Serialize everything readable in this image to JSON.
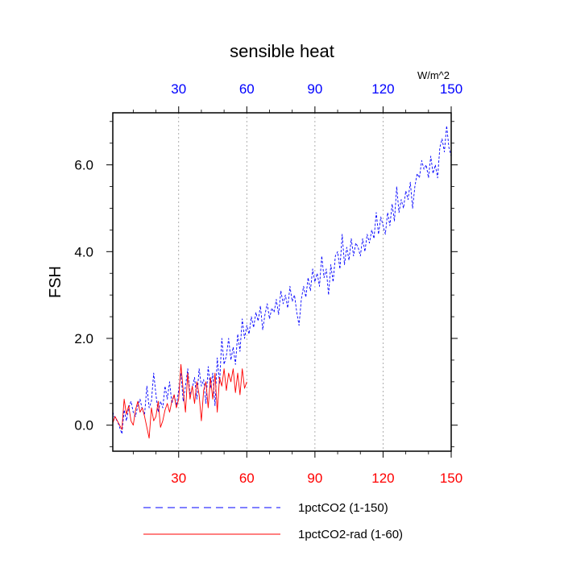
{
  "chart_data": {
    "type": "line",
    "title": "sensible heat",
    "units_label": "W/m^2",
    "ylabel": "FSH",
    "xlim": [
      1,
      150
    ],
    "ylim": [
      -0.6,
      7.2
    ],
    "x_ticks": [
      "30",
      "60",
      "90",
      "120",
      "150"
    ],
    "x_tick_values": [
      30,
      60,
      90,
      120,
      150
    ],
    "y_ticks": [
      "0.0",
      "2.0",
      "4.0",
      "6.0"
    ],
    "y_tick_values": [
      0,
      2,
      4,
      6
    ],
    "grid_vertical": true,
    "colors": {
      "top_axis": "#0000ff",
      "bottom_axis": "#ff0000",
      "series_1": "#0000ff",
      "series_2": "#ff0000"
    },
    "legend": {
      "placement": "bottom"
    },
    "series": [
      {
        "name": "1pctCO2 (1-150)",
        "color": "#0000ff",
        "style": "dashed",
        "x_start": 1,
        "values": [
          0.3,
          0.15,
          0.1,
          -0.05,
          -0.2,
          0.35,
          0.1,
          0.4,
          0.55,
          0.3,
          0.2,
          0.45,
          0.6,
          0.35,
          0.25,
          0.9,
          0.4,
          0.55,
          1.2,
          0.7,
          0.3,
          0.55,
          0.4,
          0.9,
          0.6,
          1.0,
          0.5,
          0.7,
          0.45,
          0.8,
          1.2,
          0.55,
          0.9,
          1.3,
          0.7,
          0.85,
          1.1,
          0.6,
          1.3,
          0.9,
          1.05,
          0.5,
          1.35,
          0.85,
          1.2,
          0.45,
          1.55,
          0.95,
          2.0,
          1.4,
          1.6,
          2.0,
          1.5,
          1.8,
          1.4,
          2.1,
          1.7,
          2.45,
          2.0,
          2.3,
          2.1,
          2.5,
          2.25,
          2.6,
          2.4,
          2.75,
          2.2,
          2.55,
          2.8,
          2.45,
          2.7,
          2.6,
          2.9,
          2.55,
          3.1,
          2.8,
          3.0,
          2.7,
          3.2,
          2.85,
          3.0,
          2.6,
          2.3,
          2.9,
          3.2,
          2.95,
          3.4,
          3.1,
          3.6,
          3.3,
          3.5,
          3.2,
          3.9,
          3.4,
          3.6,
          3.0,
          3.7,
          3.3,
          3.9,
          4.0,
          3.6,
          4.4,
          3.7,
          4.1,
          3.8,
          4.3,
          3.9,
          4.2,
          4.1,
          3.9,
          4.3,
          4.0,
          4.4,
          4.2,
          4.5,
          4.3,
          4.9,
          4.4,
          4.8,
          4.6,
          4.4,
          4.9,
          4.6,
          5.1,
          4.7,
          5.5,
          4.9,
          5.2,
          5.0,
          5.4,
          5.2,
          5.6,
          5.0,
          5.5,
          5.8,
          5.7,
          6.1,
          5.9,
          6.0,
          5.7,
          6.2,
          5.8,
          6.0,
          5.7,
          6.4,
          6.6,
          6.3,
          6.9,
          6.4,
          6.2
        ]
      },
      {
        "name": "1pctCO2-rad (1-60)",
        "color": "#ff0000",
        "style": "solid",
        "x_start": 1,
        "values": [
          0.05,
          0.2,
          0.1,
          0.0,
          -0.1,
          0.6,
          0.25,
          0.45,
          0.1,
          0.0,
          0.35,
          0.55,
          0.3,
          0.4,
          0.2,
          -0.05,
          -0.3,
          0.4,
          0.1,
          0.2,
          0.55,
          -0.05,
          0.1,
          0.35,
          0.5,
          0.3,
          0.55,
          0.7,
          0.4,
          0.6,
          1.4,
          0.8,
          0.3,
          1.2,
          0.6,
          0.9,
          0.5,
          1.0,
          0.7,
          0.1,
          0.8,
          1.0,
          0.4,
          1.1,
          0.6,
          1.2,
          0.3,
          1.1,
          0.9,
          1.3,
          0.8,
          1.2,
          1.0,
          1.3,
          0.75,
          1.2,
          0.7,
          1.3,
          0.85,
          1.0
        ]
      }
    ]
  }
}
